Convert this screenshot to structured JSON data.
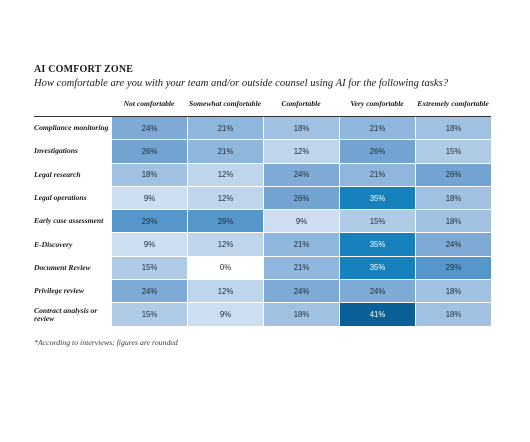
{
  "title": "AI COMFORT ZONE",
  "subtitle": "How comfortable are you with your team and/or outside counsel using AI for the following tasks?",
  "footnote": "*According to interviews; figures are rounded",
  "chart_data": {
    "type": "heatmap",
    "title": "AI COMFORT ZONE",
    "subtitle": "How comfortable are you with your team and/or outside counsel using AI for the following tasks?",
    "columns": [
      "Not comfortable",
      "Somewhat comfortable",
      "Comfortable",
      "Very comfortable",
      "Extremely comfortable"
    ],
    "rows": [
      {
        "label": "Compliance monitoring",
        "values": [
          "24%",
          "21%",
          "18%",
          "21%",
          "18%"
        ]
      },
      {
        "label": "Investigations",
        "values": [
          "26%",
          "21%",
          "12%",
          "26%",
          "15%"
        ]
      },
      {
        "label": "Legal research",
        "values": [
          "18%",
          "12%",
          "24%",
          "21%",
          "26%"
        ]
      },
      {
        "label": "Legal operations",
        "values": [
          "9%",
          "12%",
          "26%",
          "35%",
          "18%"
        ]
      },
      {
        "label": "Early case assessment",
        "values": [
          "29%",
          "29%",
          "9%",
          "15%",
          "18%"
        ]
      },
      {
        "label": "E-Discovery",
        "values": [
          "9%",
          "12%",
          "21%",
          "35%",
          "24%"
        ]
      },
      {
        "label": "Document Review",
        "values": [
          "15%",
          "0%",
          "21%",
          "35%",
          "29%"
        ]
      },
      {
        "label": "Privilege review",
        "values": [
          "24%",
          "12%",
          "24%",
          "24%",
          "18%"
        ]
      },
      {
        "label": "Contract analysis or review",
        "values": [
          "15%",
          "9%",
          "18%",
          "41%",
          "18%"
        ]
      }
    ],
    "value_range": [
      0,
      41
    ],
    "color_scale": [
      "#ffffff",
      "#0a5f96"
    ]
  }
}
